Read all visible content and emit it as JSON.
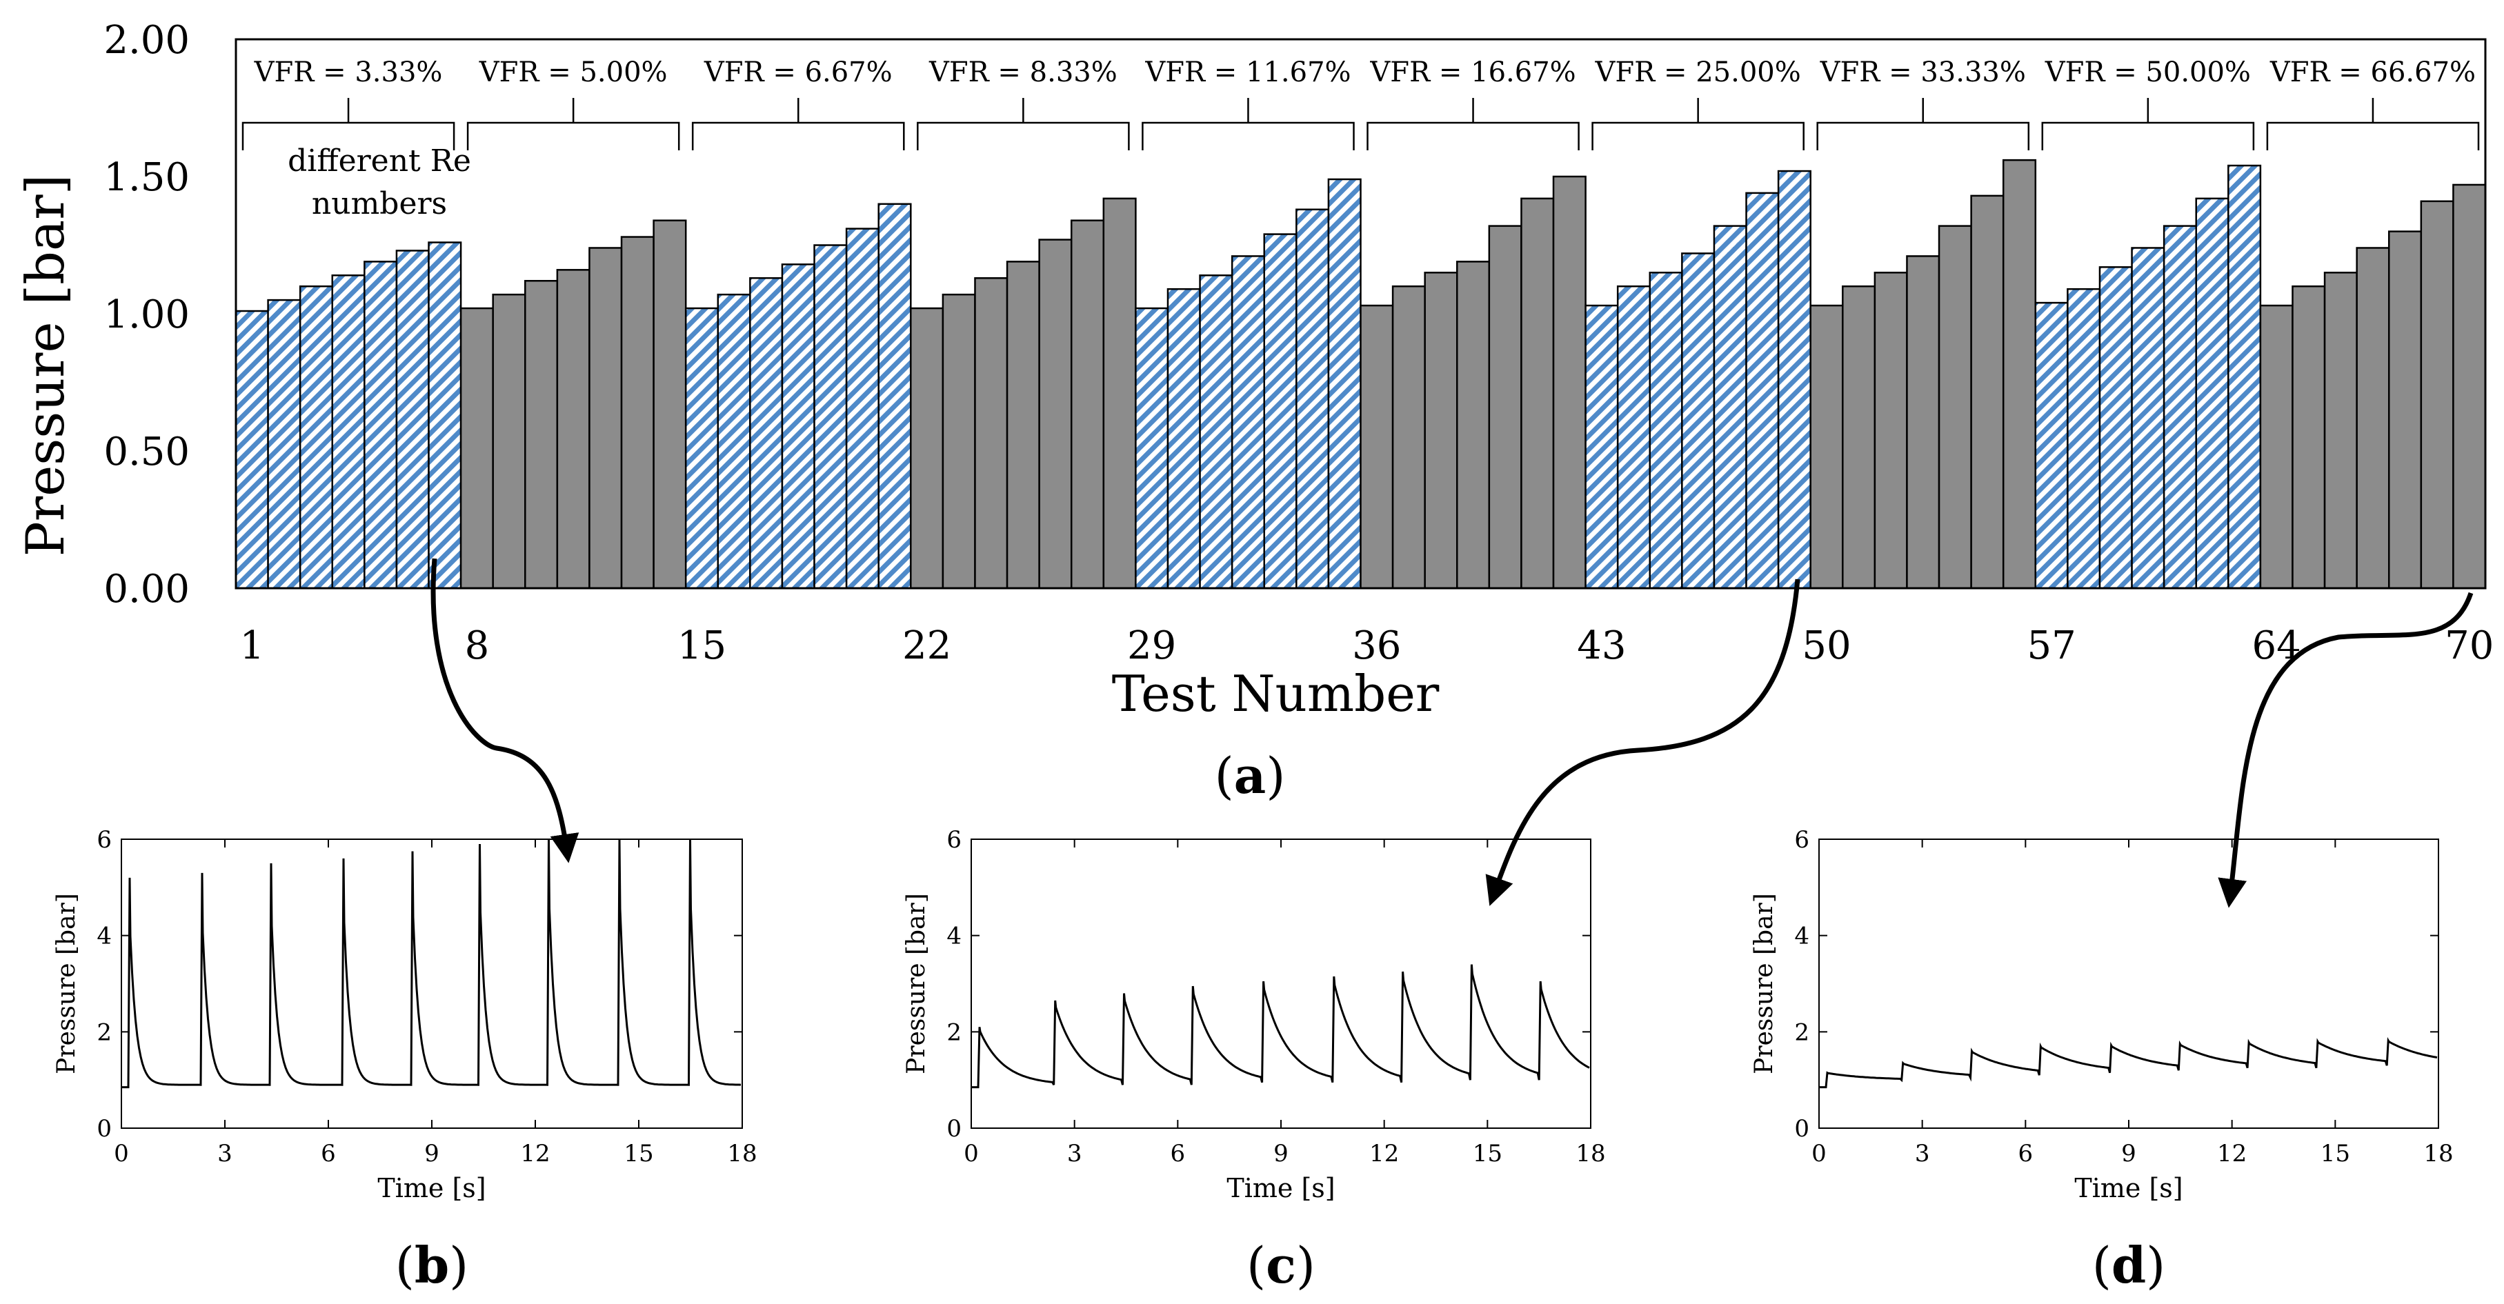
{
  "chart_data": [
    {
      "id": "a",
      "type": "bar",
      "panel_label": "a",
      "xlabel": "Test Number",
      "ylabel": "Pressure [bar]",
      "ylim": [
        0,
        2
      ],
      "yticks": [
        "0.00",
        "0.50",
        "1.00",
        "1.50",
        "2.00"
      ],
      "xtick_labels": [
        "1",
        "8",
        "15",
        "22",
        "29",
        "36",
        "43",
        "50",
        "57",
        "64",
        "70"
      ],
      "annotation": "different Re numbers",
      "groups": [
        {
          "label": "VFR = 3.33%",
          "style": "hatched",
          "values": [
            1.01,
            1.05,
            1.1,
            1.14,
            1.19,
            1.23,
            1.26
          ]
        },
        {
          "label": "VFR = 5.00%",
          "style": "solid",
          "values": [
            1.02,
            1.07,
            1.12,
            1.16,
            1.24,
            1.28,
            1.34
          ]
        },
        {
          "label": "VFR = 6.67%",
          "style": "hatched",
          "values": [
            1.02,
            1.07,
            1.13,
            1.18,
            1.25,
            1.31,
            1.4
          ]
        },
        {
          "label": "VFR = 8.33%",
          "style": "solid",
          "values": [
            1.02,
            1.07,
            1.13,
            1.19,
            1.27,
            1.34,
            1.42
          ]
        },
        {
          "label": "VFR = 11.67%",
          "style": "hatched",
          "values": [
            1.02,
            1.09,
            1.14,
            1.21,
            1.29,
            1.38,
            1.49
          ]
        },
        {
          "label": "VFR = 16.67%",
          "style": "solid",
          "values": [
            1.03,
            1.1,
            1.15,
            1.19,
            1.32,
            1.42,
            1.5
          ]
        },
        {
          "label": "VFR = 25.00%",
          "style": "hatched",
          "values": [
            1.03,
            1.1,
            1.15,
            1.22,
            1.32,
            1.44,
            1.52
          ]
        },
        {
          "label": "VFR = 33.33%",
          "style": "solid",
          "values": [
            1.03,
            1.1,
            1.15,
            1.21,
            1.32,
            1.43,
            1.56
          ]
        },
        {
          "label": "VFR = 50.00%",
          "style": "hatched",
          "values": [
            1.04,
            1.09,
            1.17,
            1.24,
            1.32,
            1.42,
            1.54
          ]
        },
        {
          "label": "VFR = 66.67%",
          "style": "solid",
          "values": [
            1.03,
            1.1,
            1.15,
            1.24,
            1.3,
            1.41,
            1.47
          ]
        }
      ]
    },
    {
      "id": "b",
      "type": "line",
      "panel_label": "b",
      "xlabel": "Time [s]",
      "ylabel": "Pressure [bar]",
      "xlim": [
        0,
        18
      ],
      "ylim": [
        0,
        6
      ],
      "xticks": [
        "0",
        "3",
        "6",
        "9",
        "12",
        "15",
        "18"
      ],
      "yticks": [
        "0",
        "2",
        "4",
        "6"
      ],
      "baseline_start": 0.85,
      "pulses": [
        {
          "t": 0.2,
          "peak": 5.2,
          "floor": 0.9
        },
        {
          "t": 2.3,
          "peak": 5.3,
          "floor": 0.9
        },
        {
          "t": 4.3,
          "peak": 5.5,
          "floor": 0.9
        },
        {
          "t": 6.4,
          "peak": 5.6,
          "floor": 0.9
        },
        {
          "t": 8.4,
          "peak": 5.75,
          "floor": 0.9
        },
        {
          "t": 10.35,
          "peak": 5.9,
          "floor": 0.9
        },
        {
          "t": 12.35,
          "peak": 6.0,
          "floor": 0.9
        },
        {
          "t": 14.4,
          "peak": 6.0,
          "floor": 0.9
        },
        {
          "t": 16.45,
          "peak": 6.0,
          "floor": 0.9
        }
      ],
      "decay": 0.18,
      "end": 0.9
    },
    {
      "id": "c",
      "type": "line",
      "panel_label": "c",
      "xlabel": "Time [s]",
      "ylabel": "Pressure [bar]",
      "xlim": [
        0,
        18
      ],
      "ylim": [
        0,
        6
      ],
      "xticks": [
        "0",
        "3",
        "6",
        "9",
        "12",
        "15",
        "18"
      ],
      "yticks": [
        "0",
        "2",
        "4",
        "6"
      ],
      "baseline_start": 0.85,
      "pulses": [
        {
          "t": 0.2,
          "peak": 2.1,
          "floor": 0.9
        },
        {
          "t": 2.4,
          "peak": 2.65,
          "floor": 0.9
        },
        {
          "t": 4.4,
          "peak": 2.8,
          "floor": 0.9
        },
        {
          "t": 6.4,
          "peak": 2.95,
          "floor": 0.95
        },
        {
          "t": 8.45,
          "peak": 3.05,
          "floor": 0.95
        },
        {
          "t": 10.5,
          "peak": 3.15,
          "floor": 0.95
        },
        {
          "t": 12.5,
          "peak": 3.25,
          "floor": 1.0
        },
        {
          "t": 14.5,
          "peak": 3.4,
          "floor": 1.0
        },
        {
          "t": 16.5,
          "peak": 3.05,
          "floor": 1.0
        }
      ],
      "decay": 0.7,
      "end": 1.0
    },
    {
      "id": "d",
      "type": "line",
      "panel_label": "d",
      "xlabel": "Time [s]",
      "ylabel": "Pressure [bar]",
      "xlim": [
        0,
        18
      ],
      "ylim": [
        0,
        6
      ],
      "xticks": [
        "0",
        "3",
        "6",
        "9",
        "12",
        "15",
        "18"
      ],
      "yticks": [
        "0",
        "2",
        "4",
        "6"
      ],
      "baseline_start": 0.85,
      "pulses": [
        {
          "t": 0.2,
          "peak": 1.15,
          "floor": 1.0
        },
        {
          "t": 2.4,
          "peak": 1.35,
          "floor": 1.05
        },
        {
          "t": 4.4,
          "peak": 1.6,
          "floor": 1.1
        },
        {
          "t": 6.4,
          "peak": 1.7,
          "floor": 1.15
        },
        {
          "t": 8.45,
          "peak": 1.72,
          "floor": 1.2
        },
        {
          "t": 10.45,
          "peak": 1.75,
          "floor": 1.25
        },
        {
          "t": 12.45,
          "peak": 1.78,
          "floor": 1.25
        },
        {
          "t": 14.45,
          "peak": 1.8,
          "floor": 1.3
        },
        {
          "t": 16.5,
          "peak": 1.82,
          "floor": 1.3
        }
      ],
      "decay": 1.2,
      "end": 1.32
    }
  ]
}
